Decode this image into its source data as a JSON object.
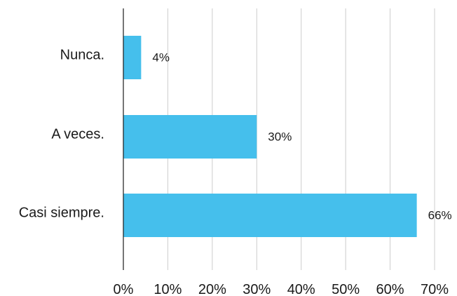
{
  "chart_data": {
    "type": "bar",
    "orientation": "horizontal",
    "categories": [
      "Nunca.",
      "A veces.",
      "Casi siempre."
    ],
    "values": [
      4,
      30,
      66
    ],
    "value_labels": [
      "4%",
      "30%",
      "66%"
    ],
    "xlim": [
      0,
      70
    ],
    "x_ticks": [
      0,
      10,
      20,
      30,
      40,
      50,
      60,
      70
    ],
    "x_tick_labels": [
      "0%",
      "10%",
      "20%",
      "30%",
      "40%",
      "50%",
      "60%",
      "70%"
    ],
    "grid": true,
    "legend": "none",
    "bar_color": "#45bfec",
    "grid_color": "#cccccc",
    "axis_color": "#1a1a1a"
  }
}
